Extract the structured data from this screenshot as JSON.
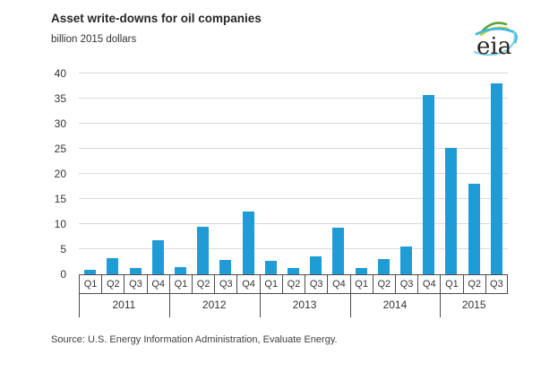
{
  "header": {
    "title": "Asset write-downs for oil companies",
    "subtitle": "billion 2015 dollars"
  },
  "logo": {
    "text": "eia"
  },
  "footer": {
    "source": "Source: U.S. Energy Information Administration, Evaluate Energy."
  },
  "chart_data": {
    "type": "bar",
    "title": "Asset write-downs for oil companies",
    "ylabel": "billion 2015 dollars",
    "xlabel": "",
    "ylim": [
      0,
      40
    ],
    "yticks": [
      0,
      5,
      10,
      15,
      20,
      25,
      30,
      35,
      40
    ],
    "grid": "horizontal",
    "legend": "none",
    "bar_color": "#1f9bd6",
    "grid_color": "#dadada",
    "axis_color": "#4d4d4d",
    "categories": [
      "Q1",
      "Q2",
      "Q3",
      "Q4",
      "Q1",
      "Q2",
      "Q3",
      "Q4",
      "Q1",
      "Q2",
      "Q3",
      "Q4",
      "Q1",
      "Q2",
      "Q3",
      "Q4",
      "Q1",
      "Q2",
      "Q3"
    ],
    "values": [
      0.9,
      3.2,
      1.2,
      6.8,
      1.4,
      9.5,
      2.9,
      12.5,
      2.7,
      1.2,
      3.5,
      9.3,
      1.2,
      3.1,
      5.5,
      35.7,
      25.2,
      18.1,
      38.1
    ],
    "groups": [
      {
        "year": "2011",
        "quarters": [
          "Q1",
          "Q2",
          "Q3",
          "Q4"
        ],
        "values": [
          0.9,
          3.2,
          1.2,
          6.8
        ]
      },
      {
        "year": "2012",
        "quarters": [
          "Q1",
          "Q2",
          "Q3",
          "Q4"
        ],
        "values": [
          1.4,
          9.5,
          2.9,
          12.5
        ]
      },
      {
        "year": "2013",
        "quarters": [
          "Q1",
          "Q2",
          "Q3",
          "Q4"
        ],
        "values": [
          2.7,
          1.2,
          3.5,
          9.3
        ]
      },
      {
        "year": "2014",
        "quarters": [
          "Q1",
          "Q2",
          "Q3",
          "Q4"
        ],
        "values": [
          1.2,
          3.1,
          5.5,
          35.7
        ]
      },
      {
        "year": "2015",
        "quarters": [
          "Q1",
          "Q2",
          "Q3"
        ],
        "values": [
          25.2,
          18.1,
          38.1
        ]
      }
    ]
  }
}
